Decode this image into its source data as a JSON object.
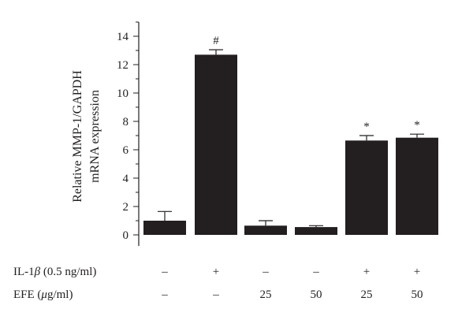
{
  "chart_data": {
    "type": "bar",
    "ylabel_lines": [
      "Relative MMP-1/GAPDH",
      "mRNA expression"
    ],
    "ylim": [
      0,
      15
    ],
    "yticks": [
      0,
      2,
      4,
      6,
      8,
      10,
      12,
      14
    ],
    "bars": [
      {
        "value": 1.0,
        "error": 0.65,
        "annotation": ""
      },
      {
        "value": 12.7,
        "error": 0.35,
        "annotation": "#"
      },
      {
        "value": 0.65,
        "error": 0.35,
        "annotation": ""
      },
      {
        "value": 0.55,
        "error": 0.1,
        "annotation": ""
      },
      {
        "value": 6.65,
        "error": 0.35,
        "annotation": "*"
      },
      {
        "value": 6.85,
        "error": 0.25,
        "annotation": "*"
      }
    ],
    "condition_rows": [
      {
        "label_main": "IL-1",
        "label_greek": "β",
        "label_rest": " (0.5 ng/ml)",
        "values": [
          "–",
          "+",
          "–",
          "–",
          "+",
          "+"
        ]
      },
      {
        "label_main": "EFE (",
        "label_greek": "μ",
        "label_rest": "g/ml)",
        "values": [
          "–",
          "–",
          "25",
          "50",
          "25",
          "50"
        ]
      }
    ],
    "colors": {
      "bar": "#231f20",
      "axis": "#231f20"
    },
    "grid": false
  }
}
